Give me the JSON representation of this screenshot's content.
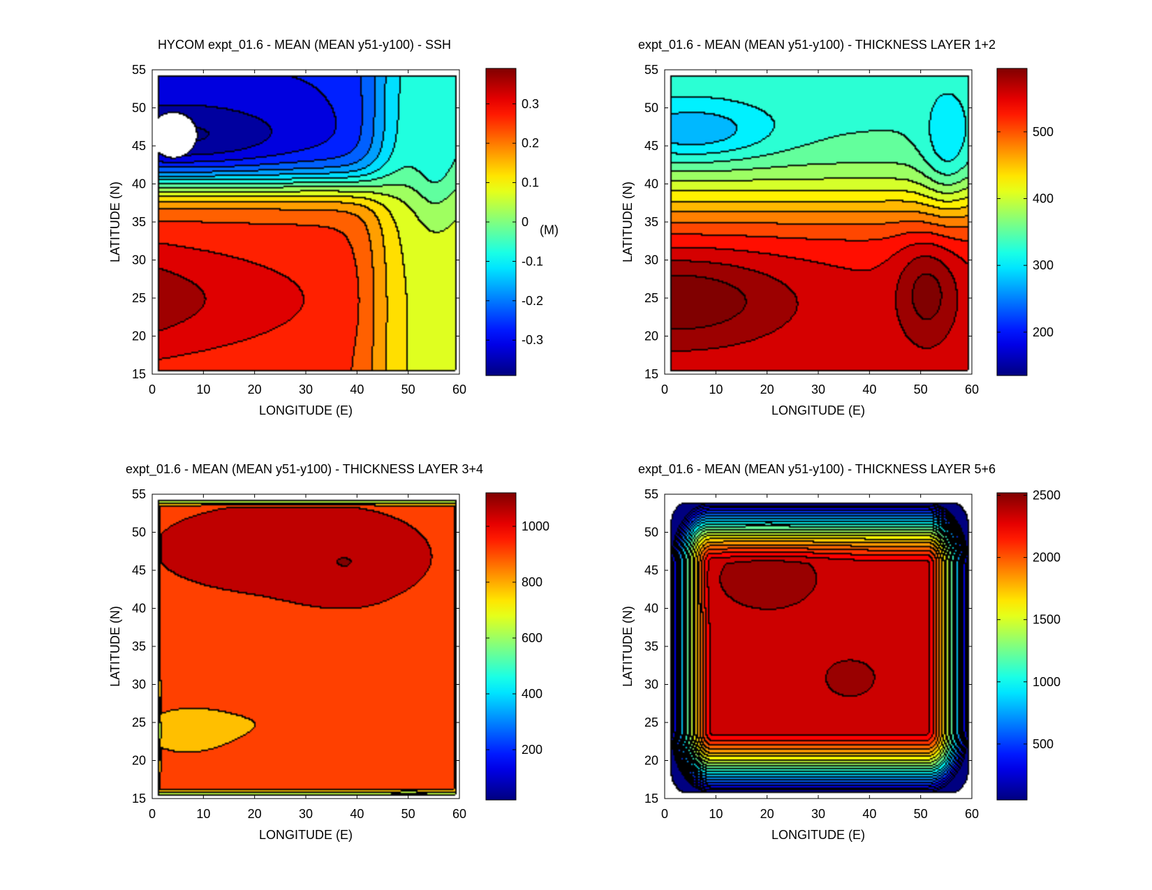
{
  "chart_data": [
    {
      "type": "heatmap",
      "plot_style": "filled-contour",
      "title": "HYCOM expt_01.6 - MEAN (MEAN y51-y100) - SSH",
      "xlabel": "LONGITUDE (E)",
      "ylabel": "LATITUDE (N)",
      "xlim": [
        0,
        60
      ],
      "ylim": [
        15,
        55
      ],
      "xticks": [
        "0",
        "10",
        "20",
        "30",
        "40",
        "50",
        "60"
      ],
      "yticks": [
        "15",
        "20",
        "25",
        "30",
        "35",
        "40",
        "45",
        "50",
        "55"
      ],
      "colorbar": {
        "range": [
          -0.39,
          0.39
        ],
        "ticks": [
          0.3,
          0.2,
          0.1,
          0,
          -0.1,
          -0.2,
          -0.3
        ],
        "tick_labels": [
          "0.3",
          "0.2",
          "0.1",
          "0",
          "-0.1",
          "-0.2",
          "-0.3"
        ],
        "unit_label": "(M)"
      },
      "field_description": "Subpolar low (about -0.39 m) centred near 5E 47N with a masked low pocket; subtropical high (about 0.37 m) near 2E 25N; sharp front near 40N"
    },
    {
      "type": "heatmap",
      "plot_style": "filled-contour",
      "title": "expt_01.6 - MEAN (MEAN y51-y100) - THICKNESS LAYER 1+2",
      "xlabel": "LONGITUDE (E)",
      "ylabel": "LATITUDE (N)",
      "xlim": [
        0,
        60
      ],
      "ylim": [
        15,
        55
      ],
      "xticks": [
        "0",
        "10",
        "20",
        "30",
        "40",
        "50",
        "60"
      ],
      "yticks": [
        "15",
        "20",
        "25",
        "30",
        "35",
        "40",
        "45",
        "50",
        "55"
      ],
      "colorbar": {
        "range": [
          135,
          595
        ],
        "ticks": [
          500,
          400,
          300,
          200
        ],
        "tick_labels": [
          "500",
          "400",
          "300",
          "200"
        ],
        "unit_label": ""
      },
      "field_description": "Thin layer (about 260) near 5E 47N; thick layer (about 580) near 3E 25N with a secondary maximum near 50E 27N"
    },
    {
      "type": "heatmap",
      "plot_style": "filled-contour",
      "title": "expt_01.6 - MEAN (MEAN y51-y100) - THICKNESS LAYER 3+4",
      "xlabel": "LONGITUDE (E)",
      "ylabel": "LATITUDE (N)",
      "xlim": [
        0,
        60
      ],
      "ylim": [
        15,
        55
      ],
      "xticks": [
        "0",
        "10",
        "20",
        "30",
        "40",
        "50",
        "60"
      ],
      "yticks": [
        "15",
        "20",
        "25",
        "30",
        "35",
        "40",
        "45",
        "50",
        "55"
      ],
      "colorbar": {
        "range": [
          20,
          1120
        ],
        "ticks": [
          1000,
          800,
          600,
          400,
          200
        ],
        "tick_labels": [
          "1000",
          "800",
          "600",
          "400",
          "200"
        ],
        "unit_label": ""
      },
      "field_description": "Mostly 900-1000; maximum (about 1100) near 38E 46N; minimum (about 750) near 5E 24N; dense contours along the boundaries"
    },
    {
      "type": "heatmap",
      "plot_style": "filled-contour",
      "title": "expt_01.6 - MEAN (MEAN y51-y100) - THICKNESS LAYER 5+6",
      "xlabel": "LONGITUDE (E)",
      "ylabel": "LATITUDE (N)",
      "xlim": [
        0,
        60
      ],
      "ylim": [
        15,
        55
      ],
      "xticks": [
        "0",
        "10",
        "20",
        "30",
        "40",
        "50",
        "60"
      ],
      "yticks": [
        "15",
        "20",
        "25",
        "30",
        "35",
        "40",
        "45",
        "50",
        "55"
      ],
      "colorbar": {
        "range": [
          50,
          2520
        ],
        "ticks": [
          2500,
          2000,
          1500,
          1000,
          500
        ],
        "tick_labels": [
          "2500",
          "2000",
          "1500",
          "1000",
          "500"
        ],
        "unit_label": ""
      },
      "field_description": "Interior about 2300-2450 with maxima near 20E 44N and 35E 31N; thickness drops sharply to under 500 along all boundaries"
    }
  ]
}
